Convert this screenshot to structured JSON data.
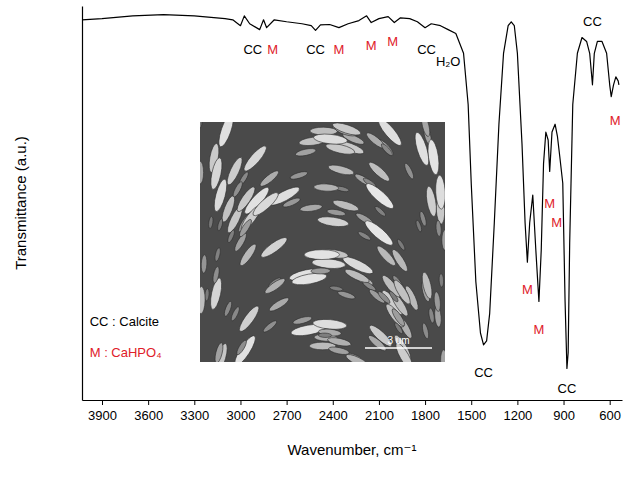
{
  "chart_data": {
    "type": "line",
    "x_label": "Wavenumber, cm⁻¹",
    "y_label": "Transmittance (a.u.)",
    "xlim": [
      4030,
      520
    ],
    "xticks": [
      3900,
      3600,
      3300,
      3000,
      2700,
      2400,
      2100,
      1800,
      1500,
      1200,
      900,
      600
    ],
    "ylim": [
      0,
      100
    ],
    "yticks": [],
    "tick_labels": "x",
    "grid": false,
    "x": [
      4030,
      3900,
      3700,
      3500,
      3300,
      3100,
      3050,
      3000,
      2975,
      2940,
      2875,
      2850,
      2830,
      2780,
      2700,
      2600,
      2540,
      2512,
      2480,
      2420,
      2360,
      2300,
      2230,
      2180,
      2150,
      2100,
      2040,
      2000,
      1960,
      1900,
      1850,
      1800,
      1760,
      1700,
      1650,
      1600,
      1550,
      1520,
      1500,
      1470,
      1440,
      1420,
      1400,
      1380,
      1350,
      1320,
      1290,
      1260,
      1240,
      1220,
      1200,
      1170,
      1150,
      1135,
      1120,
      1100,
      1080,
      1060,
      1045,
      1030,
      1015,
      1000,
      990,
      975,
      955,
      940,
      925,
      905,
      890,
      878,
      870,
      860,
      840,
      810,
      780,
      750,
      730,
      712,
      700,
      680,
      650,
      620,
      600,
      590,
      575,
      560,
      545,
      540
    ],
    "series": [
      {
        "color": "#000000",
        "values": [
          96.5,
          96.8,
          97.5,
          97.8,
          97.5,
          96.8,
          96.5,
          95,
          97.5,
          95.5,
          94,
          96.5,
          94.5,
          96.5,
          96,
          95.5,
          95,
          93.8,
          95.2,
          95.3,
          94.5,
          95.5,
          96.3,
          97.5,
          95.8,
          96.8,
          97.3,
          95.8,
          97,
          96.8,
          96,
          94.5,
          95.5,
          95,
          94,
          93,
          88,
          75,
          55,
          30,
          17,
          14,
          15,
          22,
          45,
          70,
          88,
          95,
          96,
          95,
          88,
          65,
          45,
          35,
          45,
          52,
          38,
          25,
          38,
          60,
          68,
          66,
          58,
          68,
          70,
          67,
          62,
          55,
          25,
          8,
          12,
          40,
          75,
          88,
          92,
          91,
          88,
          80,
          88,
          91,
          91,
          88,
          80,
          77,
          80,
          82,
          81,
          80
        ]
      }
    ],
    "annotations": [
      {
        "text": "CC",
        "x": 2920,
        "y": 89,
        "color": "#000000"
      },
      {
        "text": "M",
        "x": 2790,
        "y": 89,
        "color": "#e0202a"
      },
      {
        "text": "CC",
        "x": 2512,
        "y": 89,
        "color": "#000000"
      },
      {
        "text": "M",
        "x": 2360,
        "y": 89,
        "color": "#e0202a"
      },
      {
        "text": "M",
        "x": 2150,
        "y": 90,
        "color": "#e0202a"
      },
      {
        "text": "M",
        "x": 2010,
        "y": 91,
        "color": "#e0202a"
      },
      {
        "text": "CC",
        "x": 1790,
        "y": 89,
        "color": "#000000"
      },
      {
        "text": "H₂O",
        "x": 1650,
        "y": 86,
        "color": "#000000"
      },
      {
        "text": "CC",
        "x": 1420,
        "y": 7,
        "color": "#000000"
      },
      {
        "text": "M",
        "x": 1135,
        "y": 28,
        "color": "#e0202a"
      },
      {
        "text": "M",
        "x": 1060,
        "y": 18,
        "color": "#e0202a"
      },
      {
        "text": "M",
        "x": 990,
        "y": 50,
        "color": "#e0202a"
      },
      {
        "text": "M",
        "x": 945,
        "y": 45,
        "color": "#e0202a"
      },
      {
        "text": "CC",
        "x": 878,
        "y": 3,
        "color": "#000000"
      },
      {
        "text": "CC",
        "x": 712,
        "y": 96,
        "color": "#000000"
      },
      {
        "text": "M",
        "x": 565,
        "y": 71,
        "color": "#e0202a"
      }
    ],
    "notes": [
      {
        "text": "CC : Calcite",
        "x": 3980,
        "y": 20,
        "color": "#000000"
      },
      {
        "text": "M : CaHPO₄",
        "x": 3980,
        "y": 12,
        "color": "#e0202a"
      }
    ],
    "inset": {
      "scale_bar_label": "3 um"
    }
  }
}
